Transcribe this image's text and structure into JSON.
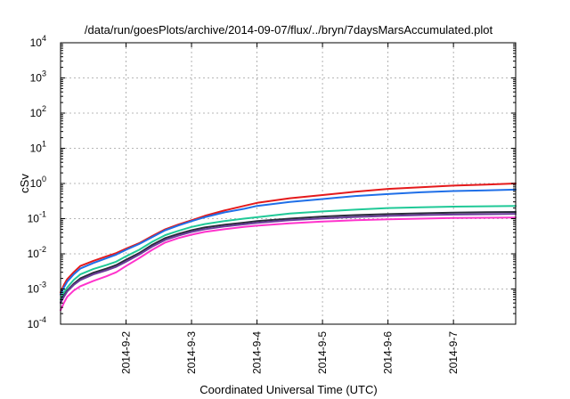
{
  "chart_data": {
    "type": "line",
    "title": "/data/run/goesPlots/archive/2014-09-07/flux/../bryn/7daysMarsAccumulated.plot",
    "xlabel": "Coordinated Universal Time (UTC)",
    "ylabel": "cSv",
    "y_scale": "log",
    "ylim": [
      0.0001,
      10000
    ],
    "xlim": [
      0,
      6.95
    ],
    "x_origin_date": "2014-09-01",
    "x_ticks": [
      {
        "x": 1,
        "label": "2014-9-2"
      },
      {
        "x": 2,
        "label": "2014-9-3"
      },
      {
        "x": 3,
        "label": "2014-9-4"
      },
      {
        "x": 4,
        "label": "2014-9-5"
      },
      {
        "x": 5,
        "label": "2014-9-6"
      },
      {
        "x": 6,
        "label": "2014-9-7"
      }
    ],
    "y_ticks": [
      {
        "value": 0.0001,
        "base": "10",
        "exp": "-4"
      },
      {
        "value": 0.001,
        "base": "10",
        "exp": "-3"
      },
      {
        "value": 0.01,
        "base": "10",
        "exp": "-2"
      },
      {
        "value": 0.1,
        "base": "10",
        "exp": "-1"
      },
      {
        "value": 1,
        "base": "10",
        "exp": "0"
      },
      {
        "value": 10,
        "base": "10",
        "exp": "1"
      },
      {
        "value": 100,
        "base": "10",
        "exp": "2"
      },
      {
        "value": 1000,
        "base": "10",
        "exp": "3"
      },
      {
        "value": 10000,
        "base": "10",
        "exp": "4"
      }
    ],
    "grid": true,
    "legend": "none",
    "x": [
      0,
      0.05,
      0.1,
      0.2,
      0.3,
      0.5,
      0.7,
      0.85,
      1.0,
      1.2,
      1.4,
      1.6,
      1.8,
      2.0,
      2.2,
      2.5,
      2.8,
      3.0,
      3.5,
      4.0,
      4.5,
      5.0,
      5.5,
      6.0,
      6.5,
      6.95
    ],
    "series": [
      {
        "color": "#e41a1c",
        "values": [
          0.0008,
          0.0013,
          0.0019,
          0.003,
          0.0045,
          0.0063,
          0.0085,
          0.0105,
          0.014,
          0.02,
          0.032,
          0.05,
          0.068,
          0.09,
          0.12,
          0.17,
          0.23,
          0.28,
          0.38,
          0.47,
          0.58,
          0.7,
          0.78,
          0.87,
          0.93,
          1.0
        ]
      },
      {
        "color": "#1f6fe8",
        "values": [
          0.0007,
          0.0011,
          0.0016,
          0.0026,
          0.0038,
          0.0055,
          0.0075,
          0.0095,
          0.013,
          0.019,
          0.03,
          0.047,
          0.064,
          0.085,
          0.11,
          0.15,
          0.19,
          0.23,
          0.3,
          0.36,
          0.44,
          0.5,
          0.56,
          0.61,
          0.64,
          0.67
        ]
      },
      {
        "color": "#20c997",
        "values": [
          0.0005,
          0.0008,
          0.0011,
          0.0018,
          0.0026,
          0.0037,
          0.0048,
          0.006,
          0.0085,
          0.013,
          0.022,
          0.034,
          0.045,
          0.058,
          0.07,
          0.085,
          0.1,
          0.11,
          0.14,
          0.16,
          0.18,
          0.2,
          0.21,
          0.22,
          0.225,
          0.23
        ]
      },
      {
        "color": "#2b2b3b",
        "values": [
          0.00042,
          0.00065,
          0.0009,
          0.0014,
          0.002,
          0.0029,
          0.0038,
          0.0048,
          0.0068,
          0.0105,
          0.018,
          0.028,
          0.037,
          0.047,
          0.056,
          0.067,
          0.077,
          0.085,
          0.1,
          0.115,
          0.126,
          0.135,
          0.142,
          0.148,
          0.152,
          0.155
        ]
      },
      {
        "color": "#6a3d9a",
        "values": [
          0.0004,
          0.0006,
          0.00085,
          0.0013,
          0.0018,
          0.0026,
          0.0034,
          0.0043,
          0.006,
          0.0095,
          0.016,
          0.025,
          0.033,
          0.042,
          0.05,
          0.06,
          0.069,
          0.076,
          0.09,
          0.102,
          0.112,
          0.12,
          0.126,
          0.131,
          0.134,
          0.137
        ]
      },
      {
        "color": "#ff33cc",
        "values": [
          0.00025,
          0.0004,
          0.0006,
          0.0009,
          0.0012,
          0.0017,
          0.0023,
          0.003,
          0.0045,
          0.0075,
          0.013,
          0.021,
          0.028,
          0.035,
          0.042,
          0.05,
          0.058,
          0.063,
          0.074,
          0.083,
          0.09,
          0.096,
          0.1,
          0.104,
          0.106,
          0.108
        ]
      }
    ]
  }
}
